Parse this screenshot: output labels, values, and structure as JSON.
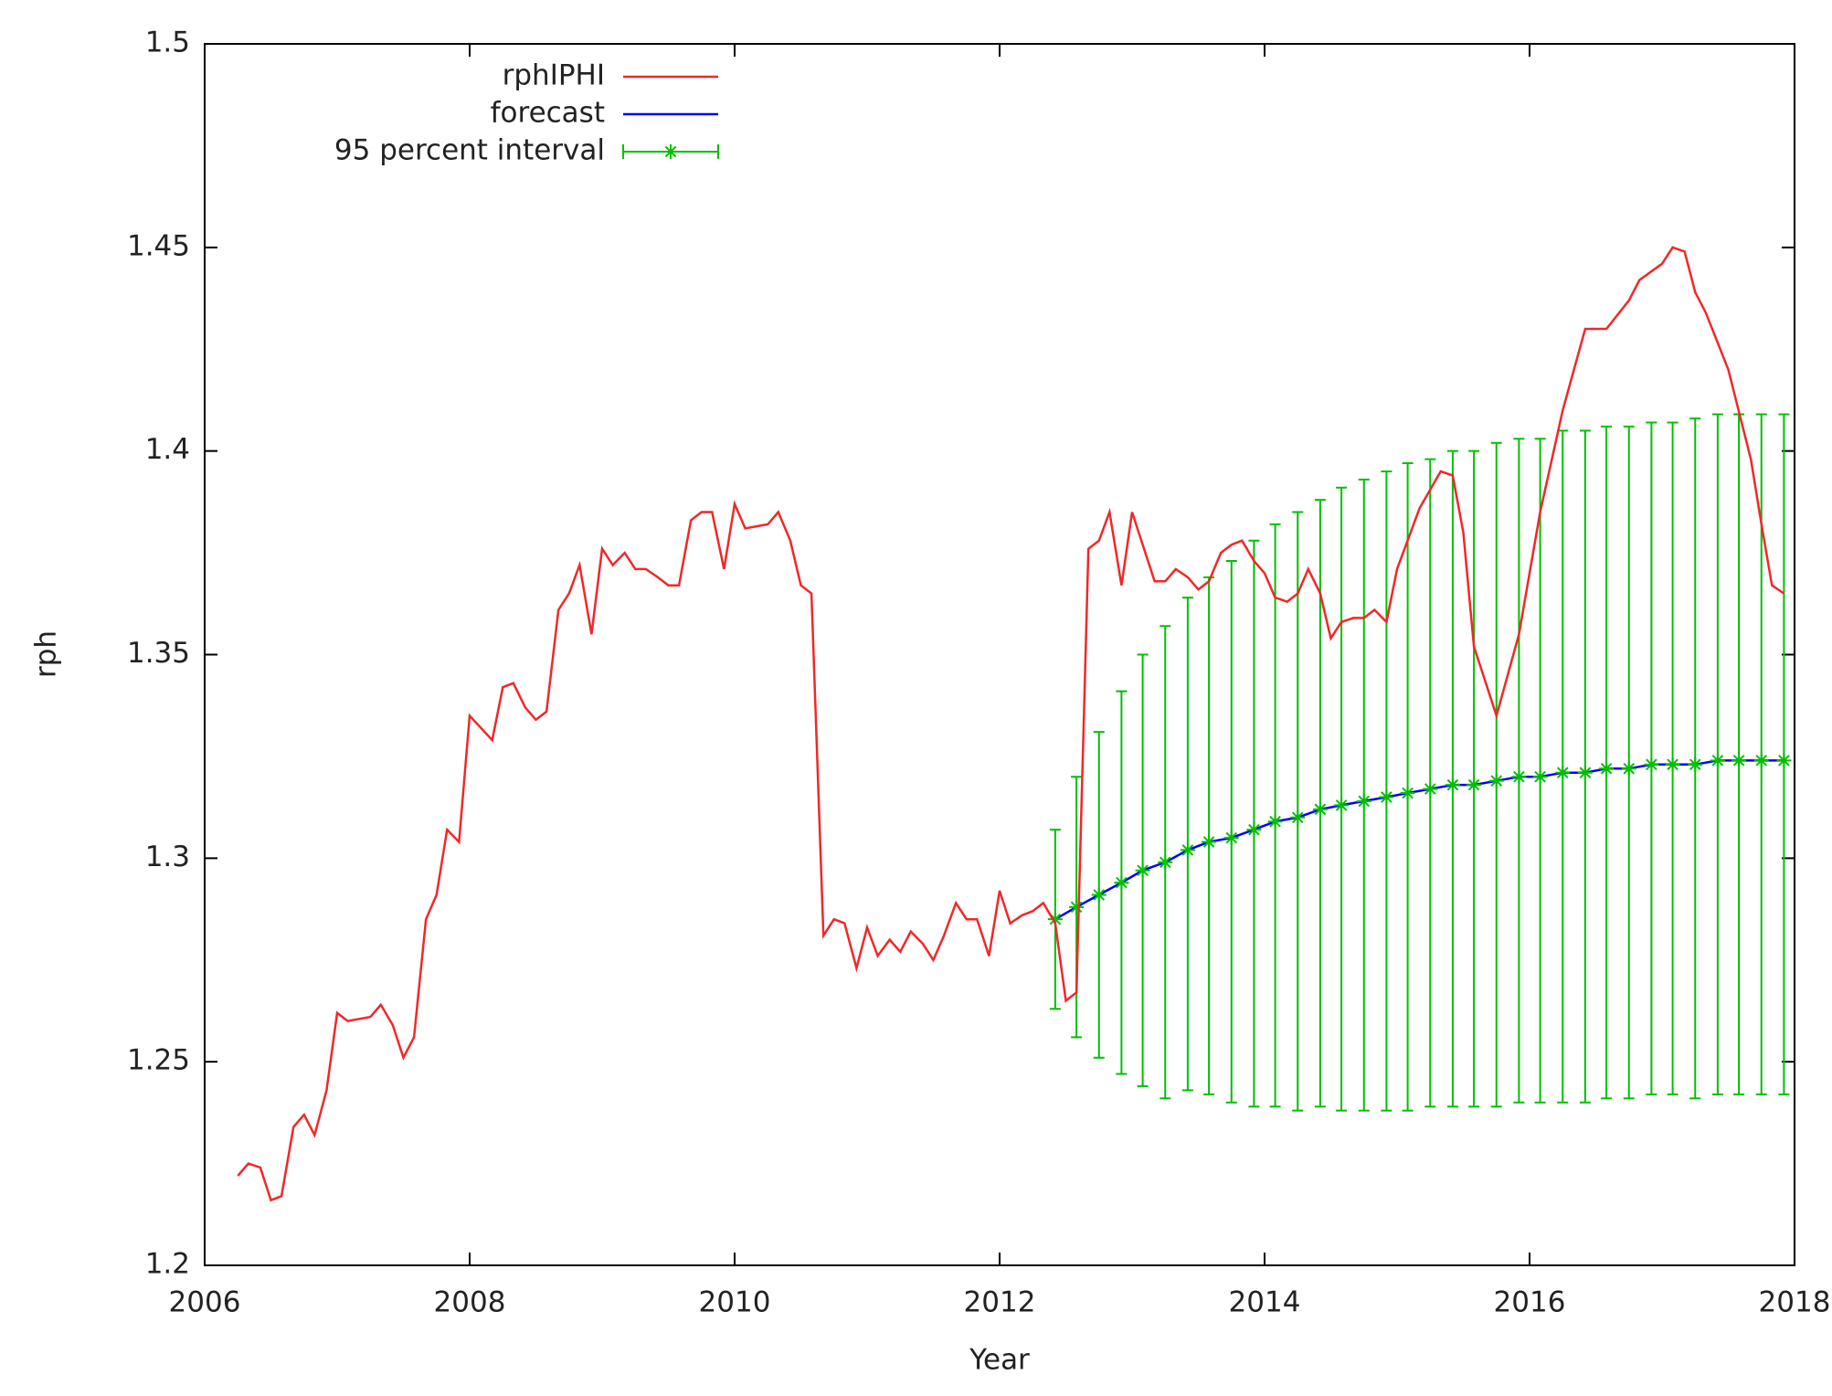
{
  "chart_data": {
    "type": "line",
    "xlabel": "Year",
    "ylabel": "rph",
    "xlim": [
      2006,
      2018
    ],
    "xticks": [
      2006,
      2008,
      2010,
      2012,
      2014,
      2016,
      2018
    ],
    "ylim": [
      1.2,
      1.5
    ],
    "yticks": [
      1.2,
      1.25,
      1.3,
      1.35,
      1.4,
      1.45,
      1.5
    ],
    "grid": false,
    "legend": "top-left",
    "series": [
      {
        "name": "rphIPHI",
        "color": "#f02828",
        "kind": "line",
        "x": [
          2006.25,
          2006.33,
          2006.42,
          2006.5,
          2006.58,
          2006.67,
          2006.75,
          2006.83,
          2006.92,
          2007.0,
          2007.08,
          2007.25,
          2007.33,
          2007.42,
          2007.5,
          2007.58,
          2007.67,
          2007.75,
          2007.83,
          2007.92,
          2008.0,
          2008.17,
          2008.25,
          2008.33,
          2008.42,
          2008.5,
          2008.58,
          2008.67,
          2008.75,
          2008.83,
          2008.92,
          2009.0,
          2009.08,
          2009.17,
          2009.25,
          2009.33,
          2009.42,
          2009.5,
          2009.58,
          2009.67,
          2009.75,
          2009.83,
          2009.92,
          2010.0,
          2010.08,
          2010.25,
          2010.33,
          2010.42,
          2010.5,
          2010.58,
          2010.67,
          2010.75,
          2010.83,
          2010.92,
          2011.0,
          2011.08,
          2011.17,
          2011.25,
          2011.33,
          2011.42,
          2011.5,
          2011.58,
          2011.67,
          2011.75,
          2011.83,
          2011.92,
          2012.0,
          2012.08,
          2012.17,
          2012.25,
          2012.33,
          2012.42,
          2012.5,
          2012.58,
          2012.67,
          2012.75,
          2012.83,
          2012.92,
          2013.0,
          2013.08,
          2013.17,
          2013.25,
          2013.33,
          2013.42,
          2013.5,
          2013.58,
          2013.67,
          2013.75,
          2013.83,
          2013.92,
          2014.0,
          2014.08,
          2014.17,
          2014.25,
          2014.33,
          2014.42,
          2014.5,
          2014.58,
          2014.67,
          2014.75,
          2014.83,
          2014.92,
          2015.0,
          2015.17,
          2015.33,
          2015.42,
          2015.5,
          2015.58,
          2015.75,
          2015.92,
          2016.08,
          2016.25,
          2016.42,
          2016.58,
          2016.75,
          2016.83,
          2017.0,
          2017.08,
          2017.17,
          2017.25,
          2017.33,
          2017.5,
          2017.67,
          2017.75,
          2017.83,
          2017.92
        ],
        "values": [
          1.222,
          1.225,
          1.224,
          1.216,
          1.217,
          1.234,
          1.237,
          1.232,
          1.243,
          1.262,
          1.26,
          1.261,
          1.264,
          1.259,
          1.251,
          1.256,
          1.285,
          1.291,
          1.307,
          1.304,
          1.335,
          1.329,
          1.342,
          1.343,
          1.337,
          1.334,
          1.336,
          1.361,
          1.365,
          1.372,
          1.355,
          1.376,
          1.372,
          1.375,
          1.371,
          1.371,
          1.369,
          1.367,
          1.367,
          1.383,
          1.385,
          1.385,
          1.371,
          1.387,
          1.381,
          1.382,
          1.385,
          1.378,
          1.367,
          1.365,
          1.281,
          1.285,
          1.284,
          1.273,
          1.283,
          1.276,
          1.28,
          1.277,
          1.282,
          1.279,
          1.275,
          1.281,
          1.289,
          1.285,
          1.285,
          1.276,
          1.292,
          1.284,
          1.286,
          1.287,
          1.289,
          1.284,
          1.265,
          1.267,
          1.376,
          1.378,
          1.385,
          1.367,
          1.385,
          1.377,
          1.368,
          1.368,
          1.371,
          1.369,
          1.366,
          1.368,
          1.375,
          1.377,
          1.378,
          1.373,
          1.37,
          1.364,
          1.363,
          1.365,
          1.371,
          1.365,
          1.354,
          1.358,
          1.359,
          1.359,
          1.361,
          1.358,
          1.371,
          1.386,
          1.395,
          1.394,
          1.38,
          1.352,
          1.335,
          1.355,
          1.385,
          1.41,
          1.43,
          1.43,
          1.437,
          1.442,
          1.446,
          1.45,
          1.449,
          1.439,
          1.434,
          1.42,
          1.398,
          1.382,
          1.367,
          1.365
        ]
      },
      {
        "name": "forecast",
        "color": "#0000ff",
        "kind": "line",
        "x": [
          2012.42,
          2012.58,
          2012.75,
          2012.92,
          2013.08,
          2013.25,
          2013.42,
          2013.58,
          2013.75,
          2013.92,
          2014.08,
          2014.25,
          2014.42,
          2014.58,
          2014.75,
          2014.92,
          2015.08,
          2015.25,
          2015.42,
          2015.58,
          2015.75,
          2015.92,
          2016.08,
          2016.25,
          2016.42,
          2016.58,
          2016.75,
          2016.92,
          2017.08,
          2017.25,
          2017.42,
          2017.58,
          2017.75,
          2017.92
        ],
        "values": [
          1.285,
          1.288,
          1.291,
          1.294,
          1.297,
          1.299,
          1.302,
          1.304,
          1.305,
          1.307,
          1.309,
          1.31,
          1.312,
          1.313,
          1.314,
          1.315,
          1.316,
          1.317,
          1.318,
          1.318,
          1.319,
          1.32,
          1.32,
          1.321,
          1.321,
          1.322,
          1.322,
          1.323,
          1.323,
          1.323,
          1.324,
          1.324,
          1.324,
          1.324
        ]
      },
      {
        "name": "95 percent interval",
        "color": "#00c000",
        "kind": "errorbar",
        "x": [
          2012.42,
          2012.58,
          2012.75,
          2012.92,
          2013.08,
          2013.25,
          2013.42,
          2013.58,
          2013.75,
          2013.92,
          2014.08,
          2014.25,
          2014.42,
          2014.58,
          2014.75,
          2014.92,
          2015.08,
          2015.25,
          2015.42,
          2015.58,
          2015.75,
          2015.92,
          2016.08,
          2016.25,
          2016.42,
          2016.58,
          2016.75,
          2016.92,
          2017.08,
          2017.25,
          2017.42,
          2017.58,
          2017.75,
          2017.92
        ],
        "values": [
          1.285,
          1.288,
          1.291,
          1.294,
          1.297,
          1.299,
          1.302,
          1.304,
          1.305,
          1.307,
          1.309,
          1.31,
          1.312,
          1.313,
          1.314,
          1.315,
          1.316,
          1.317,
          1.318,
          1.318,
          1.319,
          1.32,
          1.32,
          1.321,
          1.321,
          1.322,
          1.322,
          1.323,
          1.323,
          1.323,
          1.324,
          1.324,
          1.324,
          1.324
        ],
        "lower": [
          1.263,
          1.256,
          1.251,
          1.247,
          1.244,
          1.241,
          1.243,
          1.242,
          1.24,
          1.239,
          1.239,
          1.238,
          1.239,
          1.238,
          1.238,
          1.238,
          1.238,
          1.239,
          1.239,
          1.239,
          1.239,
          1.24,
          1.24,
          1.24,
          1.24,
          1.241,
          1.241,
          1.242,
          1.242,
          1.241,
          1.242,
          1.242,
          1.242,
          1.242
        ],
        "upper": [
          1.307,
          1.32,
          1.331,
          1.341,
          1.35,
          1.357,
          1.364,
          1.369,
          1.373,
          1.378,
          1.382,
          1.385,
          1.388,
          1.391,
          1.393,
          1.395,
          1.397,
          1.398,
          1.4,
          1.4,
          1.402,
          1.403,
          1.403,
          1.405,
          1.405,
          1.406,
          1.406,
          1.407,
          1.407,
          1.408,
          1.409,
          1.409,
          1.409,
          1.409
        ]
      }
    ]
  }
}
